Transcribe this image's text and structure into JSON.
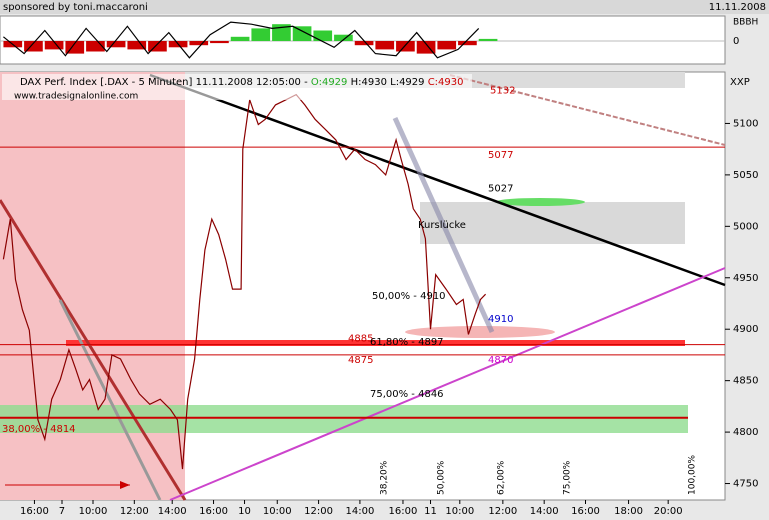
{
  "chart_data": {
    "type": "line",
    "sponsor": "sponsored by toni.maccaroni",
    "date": "11.11.2008",
    "header": {
      "instrument": "DAX Perf. Index [.DAX - 5 Minuten] 11.11.2008 12:05:00 -",
      "open": "O:4929",
      "high": "H:4930",
      "low": "L:4929",
      "close": "C:4930"
    },
    "website": "www.tradesignalonline.com",
    "axis_name": "XXP",
    "indicator": {
      "scale_label": "BBBH",
      "ylim": [
        -1,
        1
      ],
      "yticks": [
        0
      ],
      "x": [
        2,
        14,
        26,
        38,
        50,
        62,
        74,
        86,
        98,
        110,
        122,
        134,
        146,
        158,
        170,
        182,
        194,
        206,
        218,
        230,
        242,
        254,
        266,
        278
      ],
      "histogram": [
        -0.3,
        -0.5,
        -0.4,
        -0.6,
        -0.5,
        -0.3,
        -0.4,
        -0.5,
        -0.3,
        -0.2,
        -0.1,
        0.2,
        0.6,
        0.8,
        0.7,
        0.5,
        0.3,
        -0.2,
        -0.4,
        -0.5,
        -0.6,
        -0.4,
        -0.2,
        0.1
      ],
      "line": [
        0.2,
        -0.6,
        0.5,
        -0.7,
        0.6,
        -0.5,
        0.7,
        -0.6,
        0.4,
        -0.8,
        0.3,
        0.9,
        0.8,
        0.6,
        0.7,
        0.2,
        -0.3,
        0.5,
        -0.6,
        -0.7,
        0.4,
        -0.8,
        -0.4,
        0.6
      ],
      "pos_color": "#33cc33",
      "neg_color": "#cc0000"
    },
    "x": [
      2,
      6,
      9,
      13,
      17,
      22,
      26,
      30,
      35,
      40,
      44,
      48,
      52,
      57,
      61,
      65,
      70,
      76,
      81,
      87,
      93,
      99,
      103,
      106,
      109,
      113,
      116,
      119,
      123,
      127,
      131,
      135,
      140,
      141,
      145,
      150,
      154,
      160,
      166,
      172,
      177,
      183,
      189,
      195,
      201,
      206,
      212,
      218,
      224,
      230,
      233,
      237,
      240,
      244,
      247,
      250,
      253,
      259,
      265,
      269,
      272,
      276,
      279,
      282
    ],
    "series": [
      {
        "color": "#8b0000",
        "values": [
          4968,
          5007,
          4948,
          4919,
          4899,
          4812,
          4793,
          4832,
          4851,
          4880,
          4861,
          4841,
          4851,
          4822,
          4832,
          4875,
          4871,
          4851,
          4837,
          4827,
          4832,
          4822,
          4812,
          4764,
          4832,
          4871,
          4929,
          4977,
          5007,
          4992,
          4968,
          4939,
          4939,
          5075,
          5123,
          5099,
          5104,
          5118,
          5123,
          5128,
          5118,
          5104,
          5094,
          5084,
          5065,
          5075,
          5065,
          5060,
          5050,
          5084,
          5065,
          5041,
          5017,
          5007,
          4988,
          4900,
          4953,
          4939,
          4924,
          4929,
          4895,
          4915,
          4929,
          4934
        ]
      }
    ],
    "xlim": [
      0,
      421
    ],
    "xticks": [
      {
        "value": 20,
        "label": "16:00"
      },
      {
        "value": 36,
        "label": "7"
      },
      {
        "value": 54,
        "label": "10:00"
      },
      {
        "value": 78,
        "label": "12:00"
      },
      {
        "value": 100,
        "label": "14:00"
      },
      {
        "value": 124,
        "label": "16:00"
      },
      {
        "value": 142,
        "label": "10"
      },
      {
        "value": 161,
        "label": "10:00"
      },
      {
        "value": 185,
        "label": "12:00"
      },
      {
        "value": 209,
        "label": "14:00"
      },
      {
        "value": 234,
        "label": "16:00"
      },
      {
        "value": 250,
        "label": "11"
      },
      {
        "value": 267,
        "label": "10:00"
      },
      {
        "value": 292,
        "label": "12:00"
      },
      {
        "value": 316,
        "label": "14:00"
      },
      {
        "value": 340,
        "label": "16:00"
      },
      {
        "value": 365,
        "label": "18:00"
      },
      {
        "value": 388,
        "label": "20:00"
      }
    ],
    "ylim": [
      4734,
      5150
    ],
    "yticks": [
      4750,
      4800,
      4850,
      4900,
      4950,
      5000,
      5050,
      5100
    ],
    "levels": [
      5077,
      4885,
      4875,
      4814
    ],
    "level_color": "#cc0000",
    "price_labels": [
      {
        "value": 5132,
        "color": "#cc0000"
      },
      {
        "value": 5027,
        "color": "#000000"
      },
      {
        "value": 4910,
        "color": "#0000cc"
      },
      {
        "value": 4870,
        "color": "#cc00cc"
      }
    ],
    "annotations": {
      "gap": "Kurslücke",
      "fib50": "50,00% - 4910",
      "fib618": "61,80% - 4897",
      "fib75": "75,00% - 4846",
      "fib38": "38,00% - 4814",
      "v382": "38,20%",
      "v50": "50,00%",
      "v62": "62,00%",
      "v75": "75,00%",
      "v100": "100,00%"
    }
  }
}
